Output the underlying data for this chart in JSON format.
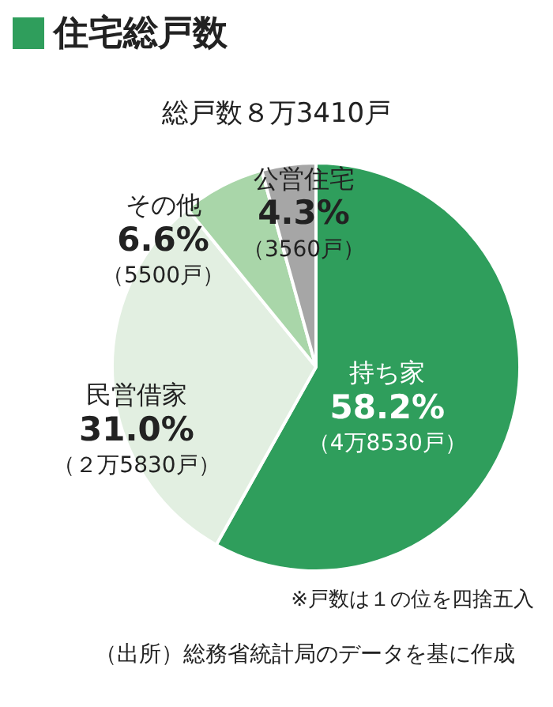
{
  "chart_data": {
    "type": "pie",
    "title": "住宅総戸数",
    "subtitle": "総戸数８万3410戸",
    "categories": [
      "持ち家",
      "民営借家",
      "その他",
      "公営住宅"
    ],
    "values": [
      58.2,
      31.0,
      6.6,
      4.3
    ],
    "colors": [
      "#2f9e5c",
      "#e2efe1",
      "#a9d6a9",
      "#a6a6a6"
    ],
    "value_labels": [
      "58.2%",
      "31.0%",
      "6.6%",
      "4.3%"
    ],
    "annotations": [
      {
        "text": "（4万8530戸）",
        "x": "持ち家"
      },
      {
        "text": "（２万5830戸）",
        "x": "民営借家"
      },
      {
        "text": "（5500戸）",
        "x": "その他"
      },
      {
        "text": "（3560戸）",
        "x": "公営住宅"
      },
      "※戸数は１の位を四捨五入",
      "（出所）総務省統計局のデータを基に作成"
    ],
    "legend": false
  }
}
